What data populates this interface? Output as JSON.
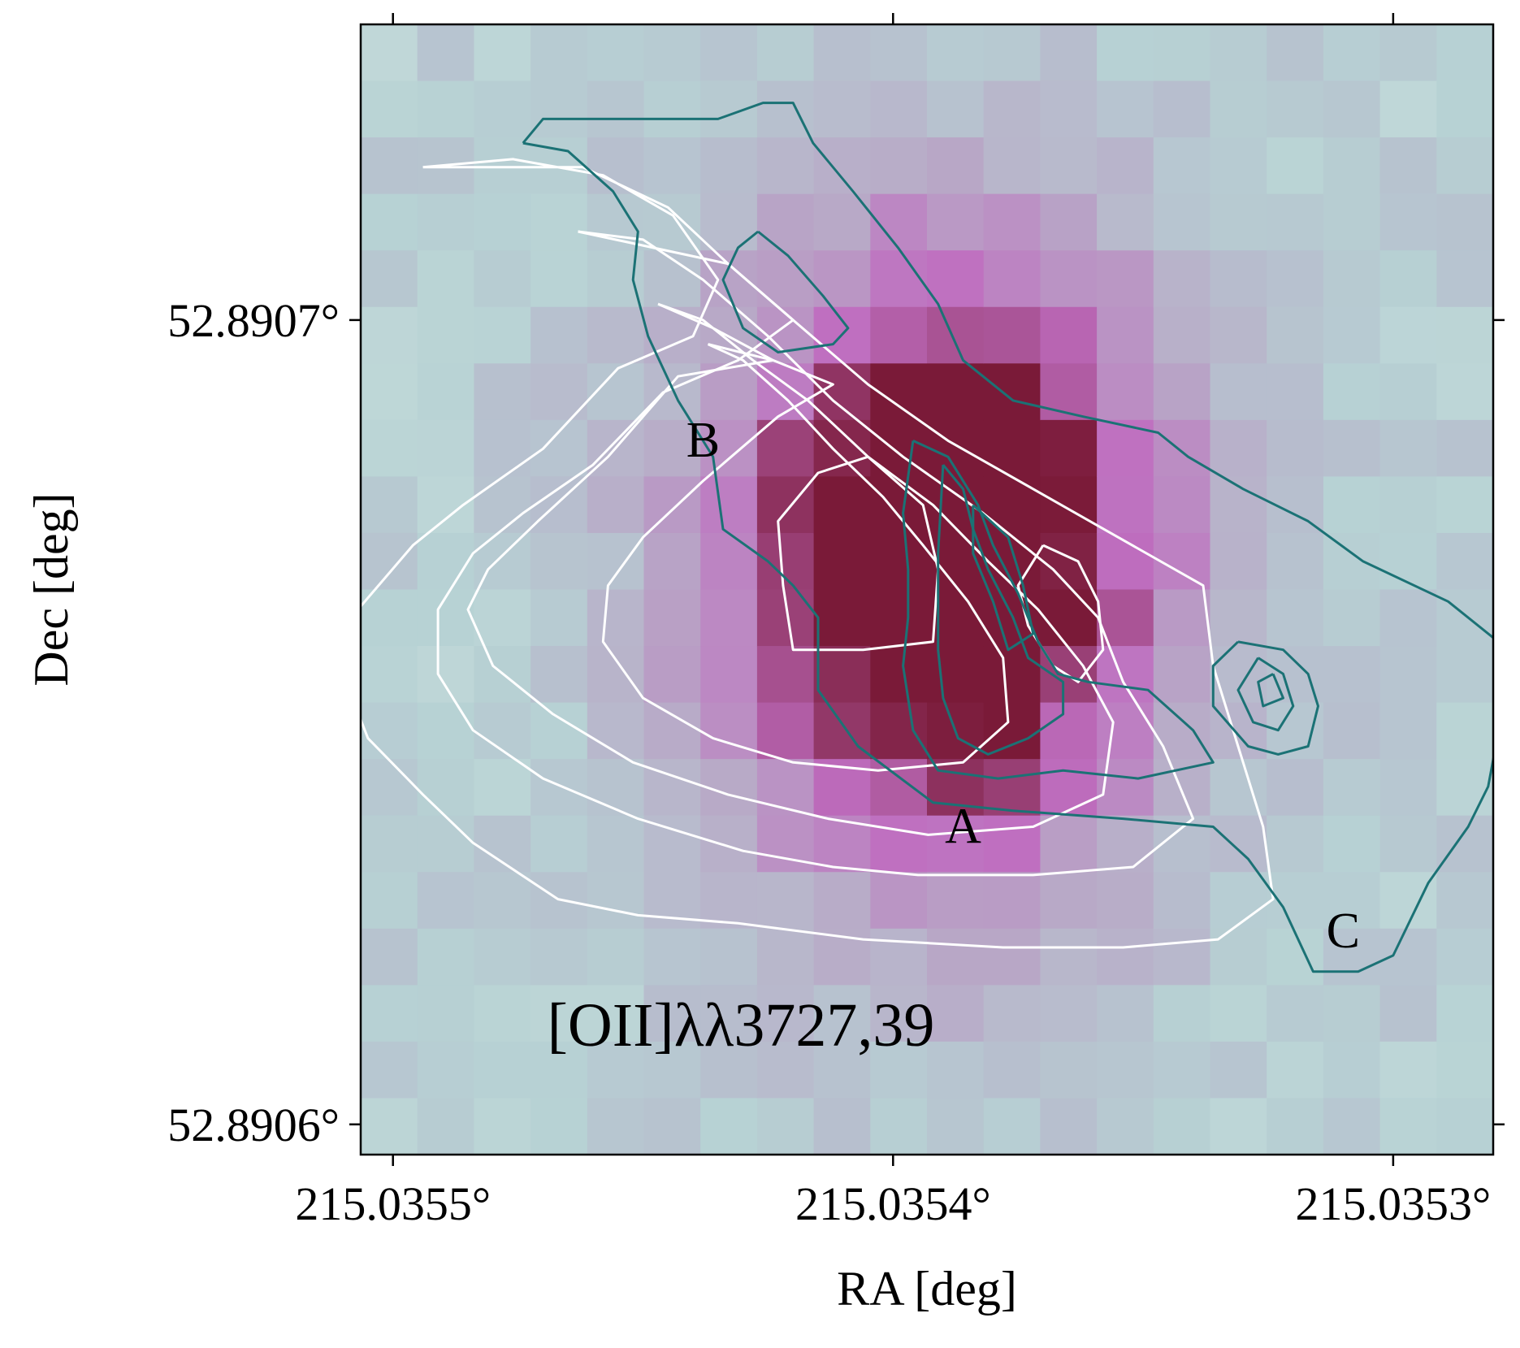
{
  "chart_data": {
    "type": "heatmap",
    "title": "",
    "annotation": "[OII]λλ3727,39",
    "xlabel": "RA [deg]",
    "ylabel": "Dec [deg]",
    "xlim": [
      215.03550645,
      215.03528
    ],
    "ylim": [
      52.89059624,
      52.89073676
    ],
    "x_ticks": [
      {
        "value": 215.0355,
        "label": "215.0355°"
      },
      {
        "value": 215.0354,
        "label": "215.0354°"
      },
      {
        "value": 215.0353,
        "label": "215.0353°"
      }
    ],
    "y_ticks": [
      {
        "value": 52.8907,
        "label": "52.8907°"
      },
      {
        "value": 52.8906,
        "label": "52.8906°"
      }
    ],
    "colormap": {
      "low": "#e6f0ea",
      "mid_low": "#b7d2d4",
      "mid": "#b8a6c6",
      "mid_high": "#bf6ec0",
      "high": "#7a1a38"
    },
    "emission_peak": {
      "ra": 215.03539,
      "dec": 52.89067,
      "sigma_ra": 3.2e-05,
      "sigma_dec": 2.8e-05
    },
    "white_contours": {
      "color": "#ffffff",
      "levels": [
        [
          [
            215.035494,
            52.890719
          ],
          [
            215.035476,
            52.89072
          ],
          [
            215.035458,
            52.890718
          ],
          [
            215.035444,
            52.890713
          ],
          [
            215.035435,
            52.890705
          ],
          [
            215.03544,
            52.890698
          ],
          [
            215.035455,
            52.890694
          ],
          [
            215.03547,
            52.890684
          ],
          [
            215.035486,
            52.890677
          ],
          [
            215.035496,
            52.890672
          ],
          [
            215.035507,
            52.890664
          ],
          [
            215.03551,
            52.890656
          ],
          [
            215.035505,
            52.890648
          ],
          [
            215.035494,
            52.890641
          ],
          [
            215.035484,
            52.890635
          ],
          [
            215.035467,
            52.890628
          ],
          [
            215.035451,
            52.890626
          ],
          [
            215.035431,
            52.890625
          ],
          [
            215.035406,
            52.890623
          ],
          [
            215.035378,
            52.890622
          ],
          [
            215.035354,
            52.890622
          ],
          [
            215.035335,
            52.890623
          ],
          [
            215.035324,
            52.890628
          ],
          [
            215.035326,
            52.890637
          ],
          [
            215.035331,
            52.890647
          ],
          [
            215.035336,
            52.890657
          ],
          [
            215.035338,
            52.890667
          ],
          [
            215.035355,
            52.890673
          ],
          [
            215.035372,
            52.890679
          ],
          [
            215.035389,
            52.890685
          ],
          [
            215.035405,
            52.890692
          ],
          [
            215.03542,
            52.8907
          ],
          [
            215.035433,
            52.890707
          ],
          [
            215.035445,
            52.890714
          ],
          [
            215.035462,
            52.890719
          ],
          [
            215.035494,
            52.890719
          ]
        ],
        [
          [
            215.035463,
            52.890711
          ],
          [
            215.035433,
            52.890707
          ],
          [
            215.03542,
            52.8907
          ],
          [
            215.035431,
            52.890695
          ],
          [
            215.035446,
            52.890691
          ],
          [
            215.03546,
            52.890682
          ],
          [
            215.035474,
            52.890676
          ],
          [
            215.035484,
            52.890671
          ],
          [
            215.035491,
            52.890664
          ],
          [
            215.035491,
            52.890656
          ],
          [
            215.035484,
            52.890649
          ],
          [
            215.03547,
            52.890643
          ],
          [
            215.035451,
            52.890638
          ],
          [
            215.03543,
            52.890634
          ],
          [
            215.035412,
            52.890632
          ],
          [
            215.035395,
            52.890631
          ],
          [
            215.035372,
            52.890631
          ],
          [
            215.035352,
            52.890632
          ],
          [
            215.03534,
            52.890638
          ],
          [
            215.035346,
            52.890647
          ],
          [
            215.035354,
            52.890655
          ],
          [
            215.035359,
            52.890663
          ],
          [
            215.035368,
            52.890669
          ],
          [
            215.035382,
            52.890676
          ],
          [
            215.035398,
            52.890683
          ],
          [
            215.035412,
            52.89069
          ],
          [
            215.035425,
            52.890698
          ],
          [
            215.035438,
            52.890705
          ],
          [
            215.03545,
            52.89071
          ],
          [
            215.035463,
            52.890711
          ]
        ],
        [
          [
            215.035447,
            52.890702
          ],
          [
            215.035436,
            52.890699
          ],
          [
            215.035424,
            52.890695
          ],
          [
            215.035443,
            52.890693
          ],
          [
            215.035457,
            52.890683
          ],
          [
            215.035471,
            52.890675
          ],
          [
            215.035481,
            52.890669
          ],
          [
            215.035485,
            52.890664
          ],
          [
            215.03548,
            52.890657
          ],
          [
            215.035468,
            52.890651
          ],
          [
            215.035452,
            52.890645
          ],
          [
            215.035433,
            52.890641
          ],
          [
            215.035413,
            52.890638
          ],
          [
            215.035393,
            52.890636
          ],
          [
            215.035372,
            52.890637
          ],
          [
            215.035358,
            52.890641
          ],
          [
            215.035356,
            52.89065
          ],
          [
            215.035362,
            52.890657
          ],
          [
            215.035371,
            52.890664
          ],
          [
            215.035381,
            52.89067
          ],
          [
            215.035392,
            52.890677
          ],
          [
            215.035405,
            52.890683
          ],
          [
            215.035417,
            52.89069
          ],
          [
            215.035428,
            52.890695
          ],
          [
            215.035438,
            52.8907
          ],
          [
            215.035447,
            52.890702
          ]
        ],
        [
          [
            215.035437,
            52.890697
          ],
          [
            215.035424,
            52.890695
          ],
          [
            215.035412,
            52.890692
          ],
          [
            215.035423,
            52.890688
          ],
          [
            215.035438,
            52.89068
          ],
          [
            215.03545,
            52.890673
          ],
          [
            215.035457,
            52.890667
          ],
          [
            215.035458,
            52.89066
          ],
          [
            215.03545,
            52.890653
          ],
          [
            215.035436,
            52.890648
          ],
          [
            215.03542,
            52.890645
          ],
          [
            215.035403,
            52.890644
          ],
          [
            215.035386,
            52.890645
          ],
          [
            215.035377,
            52.89065
          ],
          [
            215.035378,
            52.890658
          ],
          [
            215.035385,
            52.890665
          ],
          [
            215.035394,
            52.890672
          ],
          [
            215.035402,
            52.890678
          ],
          [
            215.035412,
            52.890684
          ],
          [
            215.035421,
            52.89069
          ],
          [
            215.03543,
            52.890695
          ],
          [
            215.035437,
            52.890697
          ]
        ],
        [
          [
            215.035405,
            52.890683
          ],
          [
            215.035415,
            52.890681
          ],
          [
            215.035423,
            52.890675
          ],
          [
            215.035422,
            52.890667
          ],
          [
            215.03542,
            52.890659
          ],
          [
            215.035406,
            52.890659
          ],
          [
            215.035392,
            52.89066
          ],
          [
            215.035391,
            52.890669
          ],
          [
            215.035394,
            52.890677
          ],
          [
            215.035405,
            52.890683
          ]
        ],
        [
          [
            215.03537,
            52.890672
          ],
          [
            215.035375,
            52.890667
          ],
          [
            215.035373,
            52.890662
          ],
          [
            215.035368,
            52.890657
          ],
          [
            215.035363,
            52.890655
          ],
          [
            215.035358,
            52.890659
          ],
          [
            215.035359,
            52.890665
          ],
          [
            215.035363,
            52.89067
          ],
          [
            215.03537,
            52.890672
          ]
        ]
      ]
    },
    "teal_contours": {
      "color": "#1b7275",
      "levels": [
        [
          [
            215.035474,
            52.890722
          ],
          [
            215.035465,
            52.890721
          ],
          [
            215.035456,
            52.890716
          ],
          [
            215.035451,
            52.890711
          ],
          [
            215.035452,
            52.890705
          ],
          [
            215.035449,
            52.890698
          ],
          [
            215.035443,
            52.89069
          ],
          [
            215.035436,
            52.890683
          ],
          [
            215.035434,
            52.890674
          ],
          [
            215.035425,
            52.89067
          ],
          [
            215.03542,
            52.890667
          ],
          [
            215.035415,
            52.890663
          ],
          [
            215.035415,
            52.890654
          ],
          [
            215.035407,
            52.890647
          ],
          [
            215.035392,
            52.89064
          ],
          [
            215.035376,
            52.890639
          ],
          [
            215.035354,
            52.890638
          ],
          [
            215.035336,
            52.890637
          ],
          [
            215.035329,
            52.890633
          ],
          [
            215.035322,
            52.890627
          ],
          [
            215.035316,
            52.890619
          ],
          [
            215.035307,
            52.890619
          ],
          [
            215.0353,
            52.890621
          ],
          [
            215.035293,
            52.89063
          ],
          [
            215.035285,
            52.890637
          ],
          [
            215.035281,
            52.890642
          ],
          [
            215.035278,
            52.890652
          ],
          [
            215.035279,
            52.89066
          ],
          [
            215.035289,
            52.890665
          ],
          [
            215.035306,
            52.89067
          ],
          [
            215.035317,
            52.890675
          ],
          [
            215.03533,
            52.890679
          ],
          [
            215.035341,
            52.890683
          ],
          [
            215.035347,
            52.890686
          ],
          [
            215.035362,
            52.890688
          ],
          [
            215.035376,
            52.89069
          ],
          [
            215.035386,
            52.890695
          ],
          [
            215.035391,
            52.890702
          ],
          [
            215.035399,
            52.890709
          ],
          [
            215.035408,
            52.890716
          ],
          [
            215.035416,
            52.890722
          ],
          [
            215.03542,
            52.890727
          ],
          [
            215.035426,
            52.890727
          ],
          [
            215.035435,
            52.890725
          ],
          [
            215.035444,
            52.890725
          ],
          [
            215.035458,
            52.890725
          ],
          [
            215.03547,
            52.890725
          ],
          [
            215.035474,
            52.890722
          ]
        ],
        [
          [
            215.035427,
            52.890711
          ],
          [
            215.035421,
            52.890708
          ],
          [
            215.035414,
            52.890703
          ],
          [
            215.035409,
            52.890699
          ],
          [
            215.035412,
            52.890697
          ],
          [
            215.035423,
            52.890696
          ],
          [
            215.03543,
            52.890699
          ],
          [
            215.035434,
            52.890705
          ],
          [
            215.035431,
            52.890709
          ],
          [
            215.035427,
            52.890711
          ]
        ],
        [
          [
            215.035396,
            52.890685
          ],
          [
            215.035389,
            52.890683
          ],
          [
            215.035383,
            52.890677
          ],
          [
            215.03538,
            52.890672
          ],
          [
            215.035375,
            52.890666
          ],
          [
            215.035371,
            52.89066
          ],
          [
            215.035367,
            52.890656
          ],
          [
            215.035361,
            52.890655
          ],
          [
            215.035349,
            52.890654
          ],
          [
            215.03534,
            52.890649
          ],
          [
            215.035336,
            52.890645
          ],
          [
            215.035351,
            52.890643
          ],
          [
            215.035366,
            52.890644
          ],
          [
            215.035379,
            52.890643
          ],
          [
            215.035391,
            52.890644
          ],
          [
            215.035396,
            52.890649
          ],
          [
            215.035398,
            52.890657
          ],
          [
            215.035397,
            52.890663
          ],
          [
            215.035397,
            52.890669
          ],
          [
            215.035398,
            52.890676
          ],
          [
            215.035396,
            52.890685
          ]
        ],
        [
          [
            215.03539,
            52.890682
          ],
          [
            215.035386,
            52.890679
          ],
          [
            215.035384,
            52.890674
          ],
          [
            215.035381,
            52.890669
          ],
          [
            215.035376,
            52.890663
          ],
          [
            215.035373,
            52.890658
          ],
          [
            215.035366,
            52.890655
          ],
          [
            215.035366,
            52.890651
          ],
          [
            215.035373,
            52.890648
          ],
          [
            215.035381,
            52.890646
          ],
          [
            215.035387,
            52.890648
          ],
          [
            215.03539,
            52.890653
          ],
          [
            215.035391,
            52.890659
          ],
          [
            215.035391,
            52.890664
          ],
          [
            215.035391,
            52.890671
          ],
          [
            215.03539,
            52.890682
          ]
        ],
        [
          [
            215.035384,
            52.890677
          ],
          [
            215.035377,
            52.890673
          ],
          [
            215.035374,
            52.890667
          ],
          [
            215.035372,
            52.890661
          ],
          [
            215.035377,
            52.890659
          ],
          [
            215.03538,
            52.890665
          ],
          [
            215.035384,
            52.890671
          ],
          [
            215.035384,
            52.890677
          ]
        ],
        [
          [
            215.035331,
            52.89066
          ],
          [
            215.035322,
            52.890659
          ],
          [
            215.035317,
            52.890656
          ],
          [
            215.035315,
            52.890652
          ],
          [
            215.035317,
            52.890647
          ],
          [
            215.035323,
            52.890646
          ],
          [
            215.035329,
            52.890647
          ],
          [
            215.035336,
            52.890652
          ],
          [
            215.035336,
            52.890657
          ],
          [
            215.035331,
            52.89066
          ]
        ],
        [
          [
            215.035327,
            52.890658
          ],
          [
            215.035322,
            52.890656
          ],
          [
            215.03532,
            52.890652
          ],
          [
            215.035323,
            52.890649
          ],
          [
            215.035328,
            52.89065
          ],
          [
            215.035331,
            52.890654
          ],
          [
            215.035327,
            52.890658
          ]
        ],
        [
          [
            215.035324,
            52.890656
          ],
          [
            215.035322,
            52.890653
          ],
          [
            215.035326,
            52.890652
          ],
          [
            215.035327,
            52.890655
          ],
          [
            215.035324,
            52.890656
          ]
        ]
      ]
    },
    "region_labels": [
      {
        "text": "A",
        "ra": 215.035386,
        "dec": 52.890635
      },
      {
        "text": "B",
        "ra": 215.035438,
        "dec": 52.890683
      },
      {
        "text": "C",
        "ra": 215.03531,
        "dec": 52.890622
      }
    ],
    "grid": false,
    "legend": false
  }
}
